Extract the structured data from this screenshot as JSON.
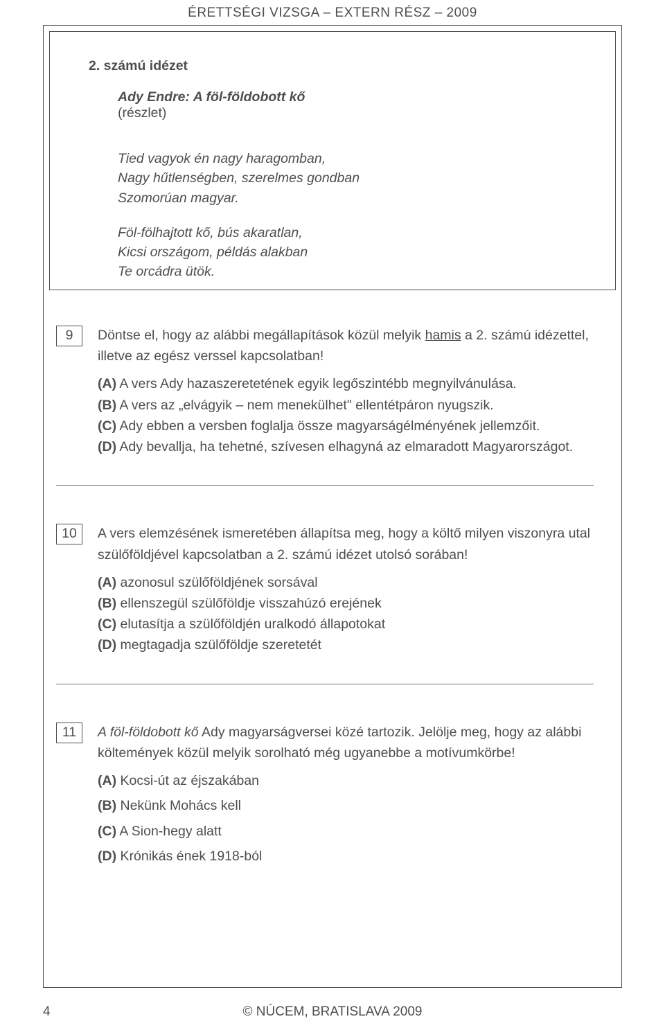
{
  "header": "ÉRETTSÉGI VIZSGA – EXTERN RÉSZ – 2009",
  "quote": {
    "title": "2. számú idézet",
    "author_line": "Ady Endre: A föl-földobott kő",
    "sub": "(részlet)",
    "stanza1": {
      "l1": "Tied vagyok én nagy haragomban,",
      "l2": "Nagy hűtlenségben, szerelmes gondban",
      "l3": "Szomorúan magyar."
    },
    "stanza2": {
      "l1": "Föl-fölhajtott kő, bús akaratlan,",
      "l2": "Kicsi országom, példás alakban",
      "l3": "Te orcádra ütök."
    }
  },
  "q9": {
    "num": "9",
    "stem_pre": "Döntse el, hogy az alábbi megállapítások közül melyik ",
    "stem_hamis": "hamis",
    "stem_post": " a 2. számú idézettel, illetve az egész verssel kapcsolatban!",
    "A": "A vers Ady hazaszeretetének egyik legőszintébb megnyilvánulása.",
    "B": "A vers az „elvágyik – nem menekülhet\" ellentétpáron nyugszik.",
    "C": "Ady ebben a versben foglalja össze magyarságélményének jellemzőit.",
    "D": "Ady bevallja, ha tehetné, szívesen elhagyná az elmaradott Magyarországot."
  },
  "q10": {
    "num": "10",
    "stem": "A vers elemzésének ismeretében állapítsa meg, hogy a költő milyen viszonyra utal szülőföldjével kapcsolatban a 2. számú idézet utolsó sorában!",
    "A": "azonosul szülőföldjének sorsával",
    "B": "ellenszegül szülőföldje visszahúzó erejének",
    "C": "elutasítja a szülőföldjén uralkodó állapotokat",
    "D": "megtagadja szülőföldje szeretetét"
  },
  "q11": {
    "num": "11",
    "stem_i": "A föl-földobott kő",
    "stem_rest": " Ady magyarságversei közé tartozik. Jelölje meg, hogy az alábbi költemények közül melyik sorolható még ugyanebbe a motívumkörbe!",
    "A": "Kocsi-út az éjszakában",
    "B": "Nekünk Mohács kell",
    "C": "A Sion-hegy alatt",
    "D": "Krónikás ének 1918-ból"
  },
  "labels": {
    "A": "(A)",
    "B": "(B)",
    "C": "(C)",
    "D": "(D)"
  },
  "footer": {
    "page": "4",
    "center": "© NÚCEM, BRATISLAVA 2009"
  }
}
